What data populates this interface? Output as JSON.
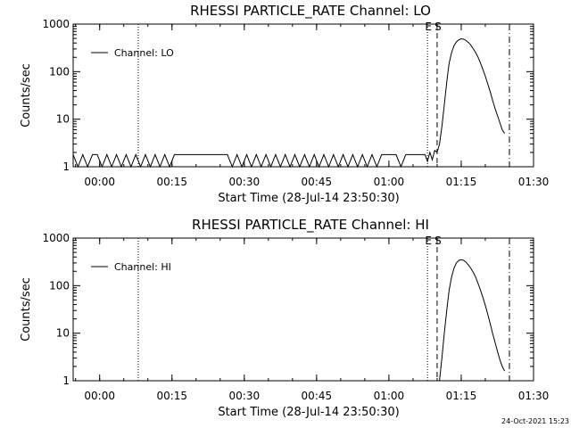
{
  "colors": {
    "background": "#ffffff",
    "foreground": "#000000"
  },
  "footer": {
    "timestamp": "24-Oct-2021 15:23"
  },
  "chart_data": [
    {
      "type": "line",
      "title": "RHESSI PARTICLE_RATE Channel: LO",
      "xlabel": "Start Time (28-Jul-14 23:50:30)",
      "ylabel": "Counts/sec",
      "xlim": [
        "23:54:30",
        "01:30"
      ],
      "ylim": [
        1,
        1000
      ],
      "yscale": "log",
      "xticks": [
        "00:00",
        "00:15",
        "00:30",
        "00:45",
        "01:00",
        "01:15",
        "01:30"
      ],
      "yticks": [
        "1",
        "10",
        "100",
        "1000"
      ],
      "legend": {
        "position": "top-left",
        "entries": [
          "Channel: LO"
        ]
      },
      "markers": [
        {
          "x": "00:08",
          "style": "dotted",
          "label": ""
        },
        {
          "x": "01:08",
          "style": "dotted",
          "label": "E"
        },
        {
          "x": "01:10",
          "style": "dashed",
          "label": "S"
        },
        {
          "x": "01:25",
          "style": "dashdot",
          "label": ""
        }
      ],
      "series": [
        {
          "name": "Channel: LO",
          "points": [
            [
              "23:54:30",
              1.8
            ],
            [
              "23:55:30",
              1
            ],
            [
              "23:56:30",
              1.8
            ],
            [
              "23:57:30",
              1
            ],
            [
              "23:58:30",
              1.8
            ],
            [
              "23:59:30",
              1.8
            ],
            [
              "00:00:30",
              1
            ],
            [
              "00:01:30",
              1.8
            ],
            [
              "00:02:30",
              1
            ],
            [
              "00:03:30",
              1.8
            ],
            [
              "00:04:30",
              1
            ],
            [
              "00:05:30",
              1.8
            ],
            [
              "00:06:30",
              1
            ],
            [
              "00:07:30",
              1.8
            ],
            [
              "00:08:30",
              1
            ],
            [
              "00:09:30",
              1.8
            ],
            [
              "00:10:30",
              1
            ],
            [
              "00:11:30",
              1.8
            ],
            [
              "00:12:30",
              1
            ],
            [
              "00:13:30",
              1.8
            ],
            [
              "00:14:30",
              1
            ],
            [
              "00:15:30",
              1.8
            ],
            [
              "00:16:30",
              1.8
            ],
            [
              "00:17:30",
              1.8
            ],
            [
              "00:18:30",
              1.8
            ],
            [
              "00:19:30",
              1.8
            ],
            [
              "00:20:30",
              1.8
            ],
            [
              "00:21:30",
              1.8
            ],
            [
              "00:22:30",
              1.8
            ],
            [
              "00:23:30",
              1.8
            ],
            [
              "00:24:30",
              1.8
            ],
            [
              "00:25:30",
              1.8
            ],
            [
              "00:26:30",
              1.8
            ],
            [
              "00:27:30",
              1
            ],
            [
              "00:28:30",
              1.8
            ],
            [
              "00:29:30",
              1
            ],
            [
              "00:30:30",
              1.8
            ],
            [
              "00:31:30",
              1
            ],
            [
              "00:32:30",
              1.8
            ],
            [
              "00:33:30",
              1
            ],
            [
              "00:34:30",
              1.8
            ],
            [
              "00:35:30",
              1
            ],
            [
              "00:36:30",
              1.8
            ],
            [
              "00:37:30",
              1
            ],
            [
              "00:38:30",
              1.8
            ],
            [
              "00:39:30",
              1
            ],
            [
              "00:40:30",
              1.8
            ],
            [
              "00:41:30",
              1
            ],
            [
              "00:42:30",
              1.8
            ],
            [
              "00:43:30",
              1
            ],
            [
              "00:44:30",
              1.8
            ],
            [
              "00:45:30",
              1
            ],
            [
              "00:46:30",
              1.8
            ],
            [
              "00:47:30",
              1
            ],
            [
              "00:48:30",
              1.8
            ],
            [
              "00:49:30",
              1
            ],
            [
              "00:50:30",
              1.8
            ],
            [
              "00:51:30",
              1
            ],
            [
              "00:52:30",
              1.8
            ],
            [
              "00:53:30",
              1
            ],
            [
              "00:54:30",
              1.8
            ],
            [
              "00:55:30",
              1
            ],
            [
              "00:56:30",
              1.8
            ],
            [
              "00:57:30",
              1
            ],
            [
              "00:58:30",
              1.8
            ],
            [
              "00:59:30",
              1.8
            ],
            [
              "01:00:30",
              1.8
            ],
            [
              "01:01:30",
              1.8
            ],
            [
              "01:02:30",
              1
            ],
            [
              "01:03:30",
              1.8
            ],
            [
              "01:04:30",
              1.8
            ],
            [
              "01:05:30",
              1.8
            ],
            [
              "01:06:30",
              1.8
            ],
            [
              "01:07:30",
              1.8
            ],
            [
              "01:08:00",
              1.3
            ],
            [
              "01:08:30",
              2.0
            ],
            [
              "01:09:00",
              1.4
            ],
            [
              "01:09:30",
              2.2
            ],
            [
              "01:10:00",
              2.0
            ],
            [
              "01:10:30",
              3.0
            ],
            [
              "01:11:00",
              7
            ],
            [
              "01:11:30",
              20
            ],
            [
              "01:12:00",
              60
            ],
            [
              "01:12:30",
              150
            ],
            [
              "01:13:00",
              250
            ],
            [
              "01:13:30",
              350
            ],
            [
              "01:14:00",
              420
            ],
            [
              "01:14:30",
              470
            ],
            [
              "01:15:00",
              490
            ],
            [
              "01:15:30",
              480
            ],
            [
              "01:16:00",
              450
            ],
            [
              "01:16:30",
              410
            ],
            [
              "01:17:00",
              360
            ],
            [
              "01:17:30",
              300
            ],
            [
              "01:18:00",
              250
            ],
            [
              "01:18:30",
              200
            ],
            [
              "01:19:00",
              150
            ],
            [
              "01:19:30",
              110
            ],
            [
              "01:20:00",
              80
            ],
            [
              "01:20:30",
              55
            ],
            [
              "01:21:00",
              38
            ],
            [
              "01:21:30",
              25
            ],
            [
              "01:22:00",
              17
            ],
            [
              "01:22:30",
              12
            ],
            [
              "01:23:00",
              8.5
            ],
            [
              "01:23:30",
              6
            ],
            [
              "01:24:00",
              5
            ]
          ]
        }
      ]
    },
    {
      "type": "line",
      "title": "RHESSI PARTICLE_RATE Channel: HI",
      "xlabel": "Start Time (28-Jul-14 23:50:30)",
      "ylabel": "Counts/sec",
      "xlim": [
        "23:54:30",
        "01:30"
      ],
      "ylim": [
        1,
        1000
      ],
      "yscale": "log",
      "xticks": [
        "00:00",
        "00:15",
        "00:30",
        "00:45",
        "01:00",
        "01:15",
        "01:30"
      ],
      "yticks": [
        "1",
        "10",
        "100",
        "1000"
      ],
      "legend": {
        "position": "top-left",
        "entries": [
          "Channel: HI"
        ]
      },
      "markers": [
        {
          "x": "00:08",
          "style": "dotted",
          "label": ""
        },
        {
          "x": "01:08",
          "style": "dotted",
          "label": "E"
        },
        {
          "x": "01:10",
          "style": "dashed",
          "label": "S"
        },
        {
          "x": "01:25",
          "style": "dashdot",
          "label": ""
        }
      ],
      "series": [
        {
          "name": "Channel: HI",
          "points": [
            [
              "01:10:30",
              1.0
            ],
            [
              "01:11:00",
              3
            ],
            [
              "01:11:30",
              10
            ],
            [
              "01:12:00",
              30
            ],
            [
              "01:12:30",
              80
            ],
            [
              "01:13:00",
              150
            ],
            [
              "01:13:30",
              230
            ],
            [
              "01:14:00",
              300
            ],
            [
              "01:14:30",
              340
            ],
            [
              "01:15:00",
              350
            ],
            [
              "01:15:30",
              340
            ],
            [
              "01:16:00",
              310
            ],
            [
              "01:16:30",
              270
            ],
            [
              "01:17:00",
              230
            ],
            [
              "01:17:30",
              190
            ],
            [
              "01:18:00",
              150
            ],
            [
              "01:18:30",
              110
            ],
            [
              "01:19:00",
              80
            ],
            [
              "01:19:30",
              56
            ],
            [
              "01:20:00",
              38
            ],
            [
              "01:20:30",
              25
            ],
            [
              "01:21:00",
              16
            ],
            [
              "01:21:30",
              10
            ],
            [
              "01:22:00",
              6.5
            ],
            [
              "01:22:30",
              4.2
            ],
            [
              "01:23:00",
              2.8
            ],
            [
              "01:23:30",
              2.0
            ],
            [
              "01:24:00",
              1.6
            ]
          ]
        }
      ]
    }
  ]
}
